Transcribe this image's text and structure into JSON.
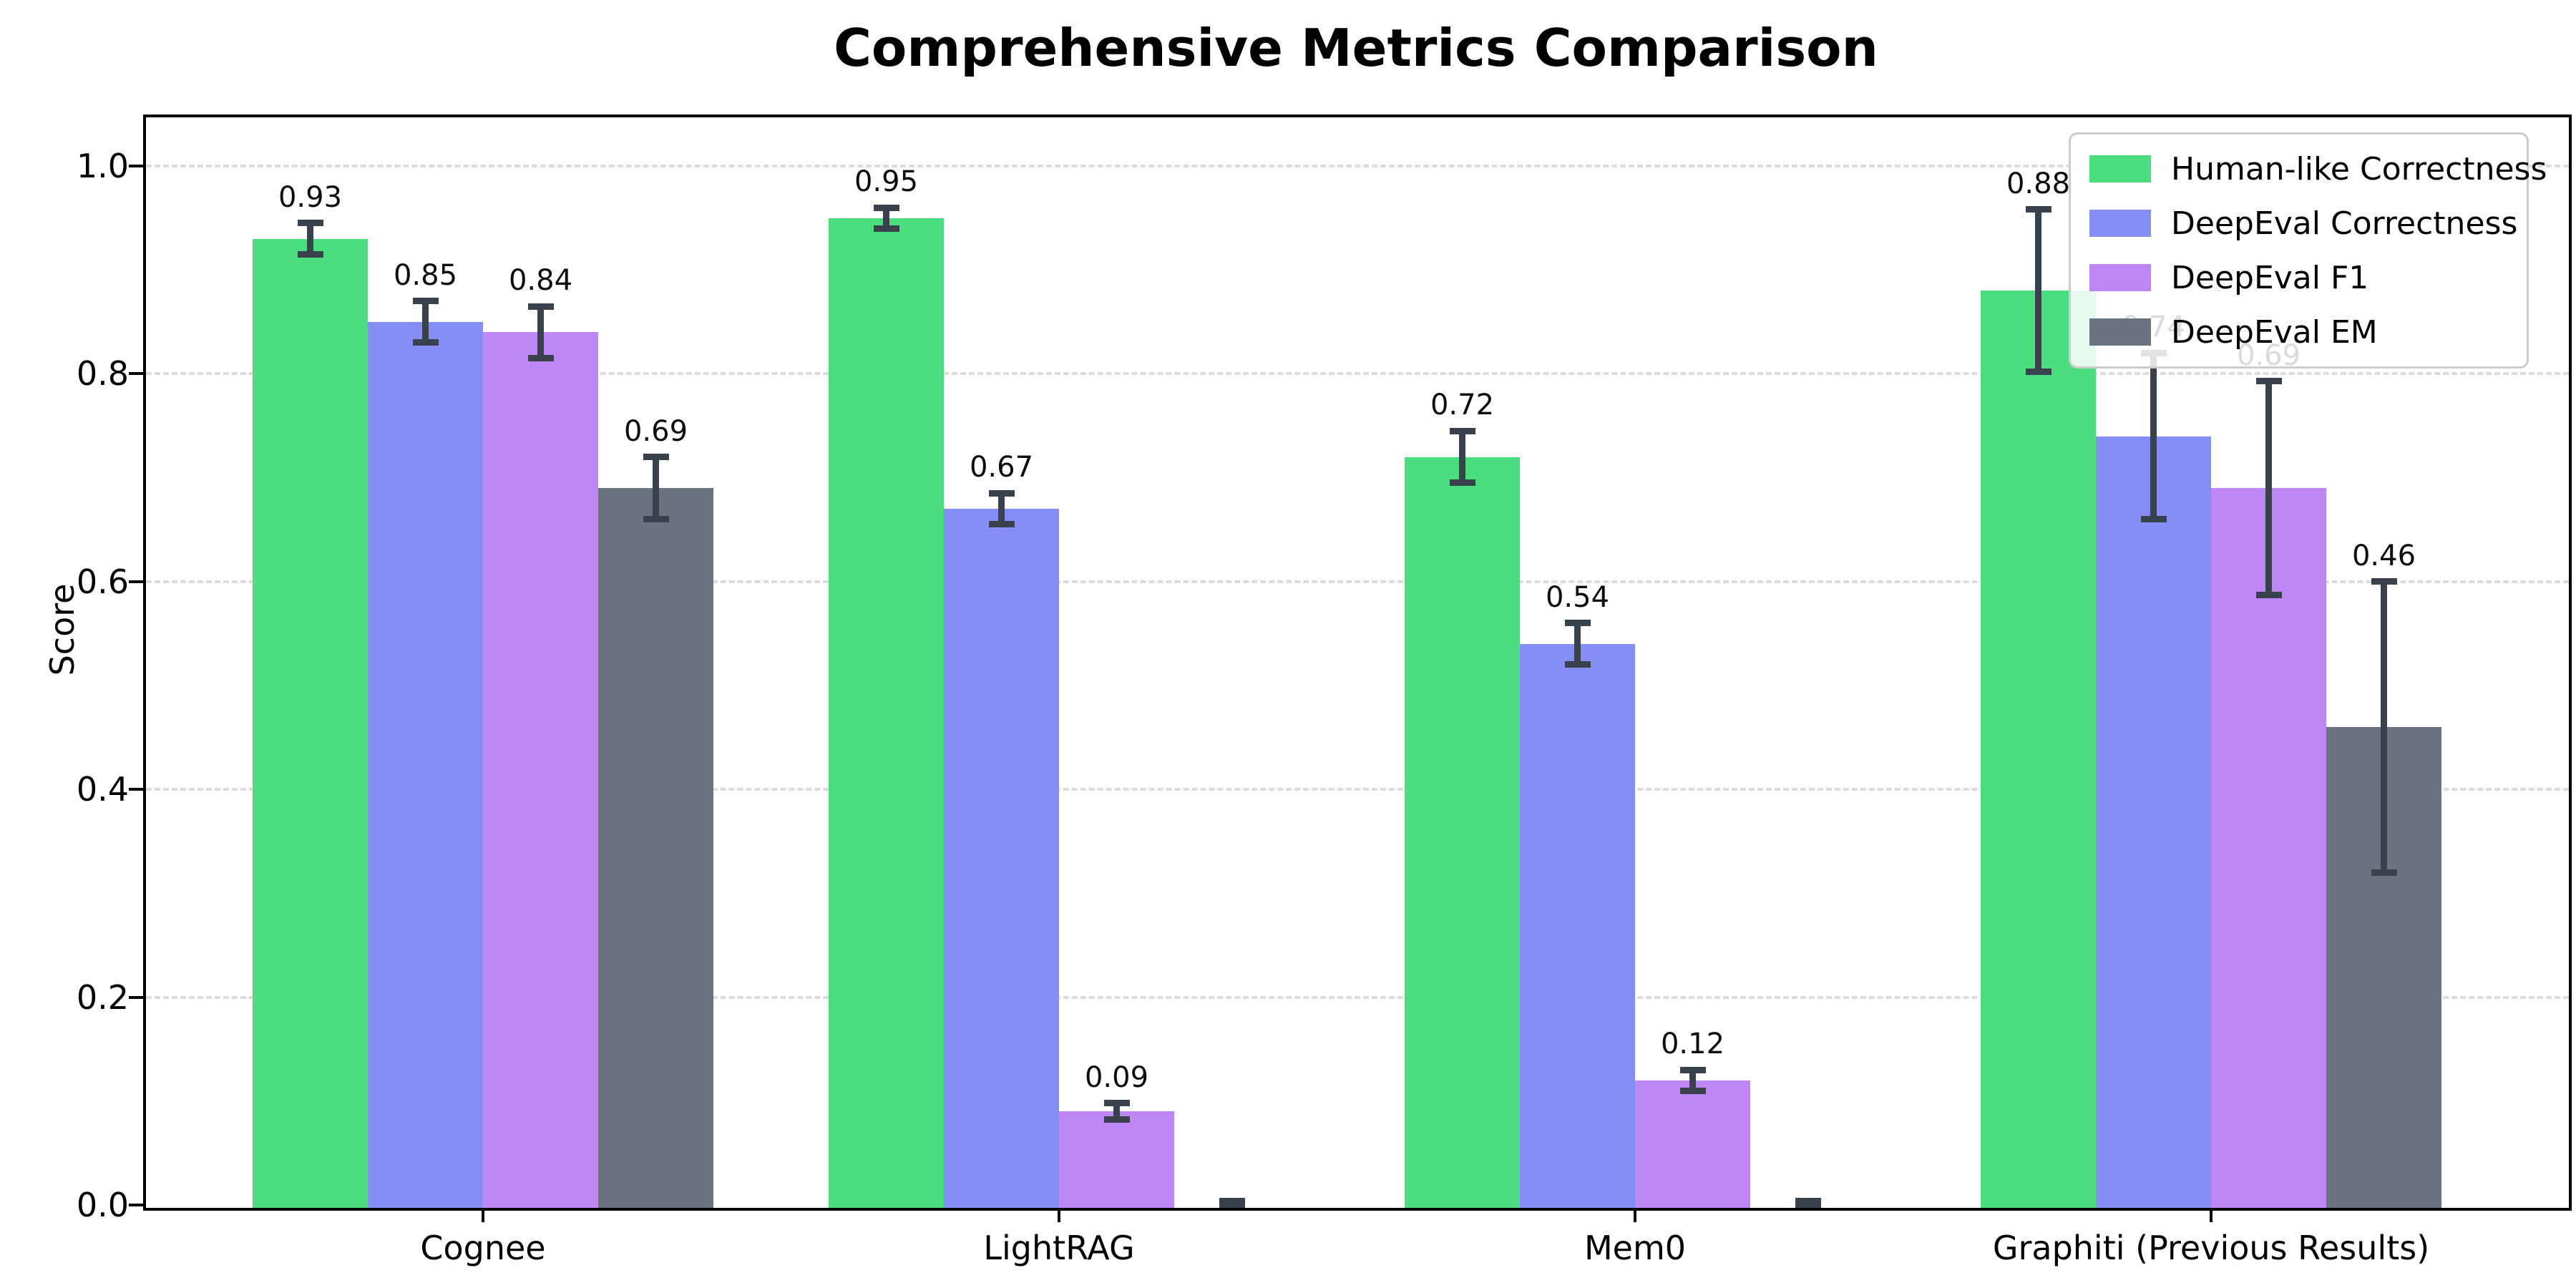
{
  "title": "Comprehensive Metrics Comparison",
  "chart_data": {
    "type": "bar",
    "title": "Comprehensive Metrics Comparison",
    "xlabel": "",
    "ylabel": "Score",
    "categories": [
      "Cognee",
      "LightRAG",
      "Mem0",
      "Graphiti (Previous Results)"
    ],
    "series": [
      {
        "name": "Human-like Correctness",
        "color": "#4ade80",
        "values": [
          0.93,
          0.95,
          0.72,
          0.88
        ],
        "errors": [
          0.015,
          0.01,
          0.025,
          0.078
        ]
      },
      {
        "name": "DeepEval Correctness",
        "color": "#858ef4",
        "values": [
          0.85,
          0.67,
          0.54,
          0.74
        ],
        "errors": [
          0.02,
          0.015,
          0.02,
          0.08
        ]
      },
      {
        "name": "DeepEval F1",
        "color": "#bf86f6",
        "values": [
          0.84,
          0.09,
          0.12,
          0.69
        ],
        "errors": [
          0.025,
          0.008,
          0.01,
          0.103
        ]
      },
      {
        "name": "DeepEval EM",
        "color": "#6b7280",
        "values": [
          0.69,
          0.0,
          0.0,
          0.46
        ],
        "errors": [
          0.03,
          0.004,
          0.004,
          0.14
        ]
      }
    ],
    "bar_labels_visible": [
      [
        "0.93",
        "0.95",
        "0.72",
        "0.88"
      ],
      [
        "0.85",
        "0.67",
        "0.54",
        "0.74"
      ],
      [
        "0.84",
        "0.09",
        "0.12",
        "0.69"
      ],
      [
        "0.69",
        "",
        "",
        "0.46"
      ]
    ],
    "yticks": [
      "0.0",
      "0.2",
      "0.4",
      "0.6",
      "0.8",
      "1.0"
    ],
    "ylim": [
      0,
      1.05
    ],
    "grid": "horizontal-dashed",
    "legend_position": "upper-right",
    "error_bars": true,
    "colors": {
      "errorbar": "#39414d",
      "gridline": "#dcdcdc",
      "spine": "#000000",
      "legend_border": "#cccccc",
      "background": "#ffffff"
    }
  }
}
